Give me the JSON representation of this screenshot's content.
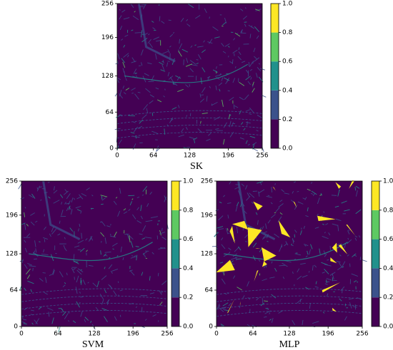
{
  "chart_data": [
    {
      "type": "heatmap",
      "title": "SK",
      "xlim": [
        0,
        256
      ],
      "ylim": [
        0,
        256
      ],
      "xticks": [
        0,
        64,
        128,
        196,
        256
      ],
      "yticks": [
        0,
        64,
        128,
        196,
        256
      ],
      "colorbar": {
        "lim": [
          0,
          1
        ],
        "ticks": [
          {
            "value": 0,
            "label": "0.0"
          },
          {
            "value": 0.2,
            "label": "0.2"
          },
          {
            "value": 0.4,
            "label": "0.4"
          },
          {
            "value": 0.6,
            "label": "0.6"
          },
          {
            "value": 0.8,
            "label": "0.8"
          },
          {
            "value": 1,
            "label": "1.0"
          }
        ],
        "colors": [
          "#440154",
          "#3b528b",
          "#21918c",
          "#5ec962",
          "#fde725"
        ]
      }
    },
    {
      "type": "heatmap",
      "title": "SVM",
      "xlim": [
        0,
        256
      ],
      "ylim": [
        0,
        256
      ],
      "xticks": [
        0,
        64,
        128,
        196,
        256
      ],
      "yticks": [
        0,
        64,
        128,
        196,
        256
      ],
      "colorbar": {
        "lim": [
          0,
          1
        ],
        "ticks": [
          {
            "value": 0,
            "label": "0.0"
          },
          {
            "value": 0.2,
            "label": "0.2"
          },
          {
            "value": 0.4,
            "label": "0.4"
          },
          {
            "value": 0.6,
            "label": "0.6"
          },
          {
            "value": 0.8,
            "label": "0.8"
          },
          {
            "value": 1,
            "label": "1.0"
          }
        ],
        "colors": [
          "#440154",
          "#3b528b",
          "#21918c",
          "#5ec962",
          "#fde725"
        ]
      }
    },
    {
      "type": "heatmap",
      "title": "MLP",
      "xlim": [
        0,
        256
      ],
      "ylim": [
        0,
        256
      ],
      "xticks": [
        0,
        64,
        128,
        196,
        256
      ],
      "yticks": [
        0,
        64,
        128,
        196,
        256
      ],
      "colorbar": {
        "lim": [
          0,
          1
        ],
        "ticks": [
          {
            "value": 0,
            "label": "0.0"
          },
          {
            "value": 0.2,
            "label": "0.2"
          },
          {
            "value": 0.4,
            "label": "0.4"
          },
          {
            "value": 0.6,
            "label": "0.6"
          },
          {
            "value": 0.8,
            "label": "0.8"
          },
          {
            "value": 1,
            "label": "1.0"
          }
        ],
        "colors": [
          "#440154",
          "#3b528b",
          "#21918c",
          "#5ec962",
          "#fde725"
        ]
      }
    }
  ]
}
